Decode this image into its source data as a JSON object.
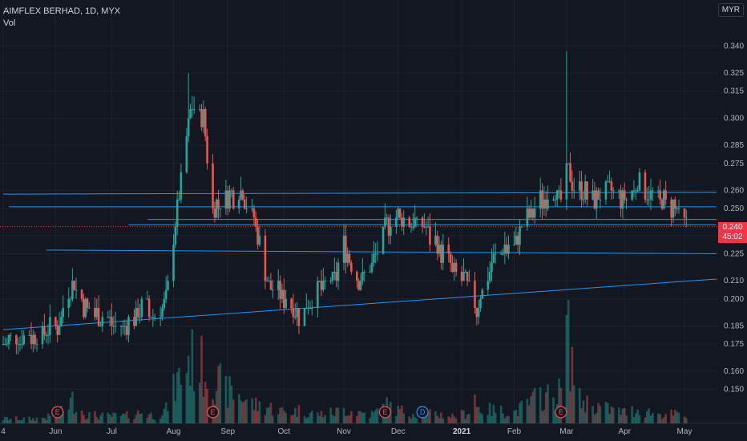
{
  "header": {
    "symbol": "AIMFLEX BERHAD",
    "interval": "1D",
    "exchange": "MYX",
    "volume_label": "Vol",
    "currency": "MYR"
  },
  "last_price": {
    "price": "0.240",
    "countdown": "45:02"
  },
  "colors": {
    "background": "#131722",
    "up": "#26a69a",
    "down": "#ef5350",
    "trendline": "#2196f3",
    "price_tag": "#f23645"
  },
  "chart_data": {
    "type": "candlestick",
    "title": "AIMFLEX BERHAD, 1D, MYX",
    "ylabel": "MYR",
    "ylim": [
      0.14,
      0.345
    ],
    "y_ticks": [
      "0.150",
      "0.160",
      "0.175",
      "0.185",
      "0.200",
      "0.210",
      "0.225",
      "0.235",
      "0.250",
      "0.260",
      "0.275",
      "0.285",
      "0.300",
      "0.315",
      "0.325",
      "0.340"
    ],
    "x_ticks": [
      {
        "label": "4",
        "date": "2020-05-04"
      },
      {
        "label": "Jun",
        "date": "2020-06-01"
      },
      {
        "label": "Jul",
        "date": "2020-07-01"
      },
      {
        "label": "Aug",
        "date": "2020-08-03"
      },
      {
        "label": "Sep",
        "date": "2020-09-01"
      },
      {
        "label": "Oct",
        "date": "2020-10-01"
      },
      {
        "label": "Nov",
        "date": "2020-11-02"
      },
      {
        "label": "Dec",
        "date": "2020-12-01"
      },
      {
        "label": "2021",
        "date": "2021-01-04",
        "bold": true
      },
      {
        "label": "Feb",
        "date": "2021-02-01"
      },
      {
        "label": "Mar",
        "date": "2021-03-01"
      },
      {
        "label": "Apr",
        "date": "2021-04-01"
      },
      {
        "label": "May",
        "date": "2021-05-03"
      }
    ],
    "events": [
      {
        "label": "E",
        "date": "2020-06-02"
      },
      {
        "label": "E",
        "date": "2020-08-24"
      },
      {
        "label": "E",
        "date": "2020-11-24"
      },
      {
        "label": "D",
        "date": "2020-12-14"
      },
      {
        "label": "E",
        "date": "2021-02-26"
      }
    ],
    "trendlines": [
      {
        "start": [
          "2020-05-04",
          0.258
        ],
        "end": [
          "2021-05-20",
          0.259
        ]
      },
      {
        "start": [
          "2020-05-07",
          0.251
        ],
        "end": [
          "2021-05-20",
          0.251
        ]
      },
      {
        "start": [
          "2020-07-20",
          0.244
        ],
        "end": [
          "2021-05-20",
          0.244
        ]
      },
      {
        "start": [
          "2020-07-10",
          0.241
        ],
        "end": [
          "2021-05-20",
          0.241
        ]
      },
      {
        "start": [
          "2020-05-27",
          0.227
        ],
        "end": [
          "2021-05-20",
          0.225
        ]
      },
      {
        "start": [
          "2020-05-04",
          0.183
        ],
        "end": [
          "2021-05-20",
          0.211
        ]
      }
    ],
    "keypoints": [
      [
        "2020-05-04",
        0.175,
        5
      ],
      [
        "2020-05-20",
        0.18,
        5
      ],
      [
        "2020-06-02",
        0.185,
        8
      ],
      [
        "2020-06-10",
        0.21,
        25
      ],
      [
        "2020-06-17",
        0.195,
        10
      ],
      [
        "2020-06-25",
        0.19,
        8
      ],
      [
        "2020-07-08",
        0.185,
        8
      ],
      [
        "2020-07-17",
        0.195,
        12
      ],
      [
        "2020-07-24",
        0.19,
        8
      ],
      [
        "2020-07-30",
        0.2,
        15
      ],
      [
        "2020-08-05",
        0.25,
        45
      ],
      [
        "2020-08-12",
        0.305,
        70
      ],
      [
        "2020-08-19",
        0.3,
        60
      ],
      [
        "2020-08-24",
        0.25,
        50
      ],
      [
        "2020-08-31",
        0.255,
        35
      ],
      [
        "2020-09-08",
        0.26,
        30
      ],
      [
        "2020-09-15",
        0.245,
        20
      ],
      [
        "2020-09-22",
        0.21,
        18
      ],
      [
        "2020-10-02",
        0.2,
        12
      ],
      [
        "2020-10-09",
        0.19,
        14
      ],
      [
        "2020-10-19",
        0.205,
        10
      ],
      [
        "2020-10-28",
        0.21,
        12
      ],
      [
        "2020-11-02",
        0.23,
        15
      ],
      [
        "2020-11-10",
        0.21,
        12
      ],
      [
        "2020-11-18",
        0.22,
        10
      ],
      [
        "2020-11-24",
        0.24,
        20
      ],
      [
        "2020-12-01",
        0.245,
        14
      ],
      [
        "2020-12-14",
        0.24,
        10
      ],
      [
        "2020-12-22",
        0.23,
        10
      ],
      [
        "2020-12-30",
        0.215,
        8
      ],
      [
        "2021-01-05",
        0.21,
        10
      ],
      [
        "2021-01-12",
        0.195,
        18
      ],
      [
        "2021-01-15",
        0.205,
        15
      ],
      [
        "2021-01-22",
        0.225,
        14
      ],
      [
        "2021-02-01",
        0.23,
        12
      ],
      [
        "2021-02-08",
        0.245,
        20
      ],
      [
        "2021-02-15",
        0.255,
        30
      ],
      [
        "2021-02-22",
        0.26,
        28
      ],
      [
        "2021-02-26",
        0.255,
        35
      ],
      [
        "2021-03-01",
        0.27,
        100
      ],
      [
        "2021-03-08",
        0.26,
        25
      ],
      [
        "2021-03-15",
        0.255,
        20
      ],
      [
        "2021-03-24",
        0.26,
        15
      ],
      [
        "2021-04-01",
        0.255,
        12
      ],
      [
        "2021-04-09",
        0.265,
        15
      ],
      [
        "2021-04-19",
        0.255,
        10
      ],
      [
        "2021-04-28",
        0.25,
        10
      ],
      [
        "2021-05-04",
        0.24,
        8
      ]
    ]
  }
}
